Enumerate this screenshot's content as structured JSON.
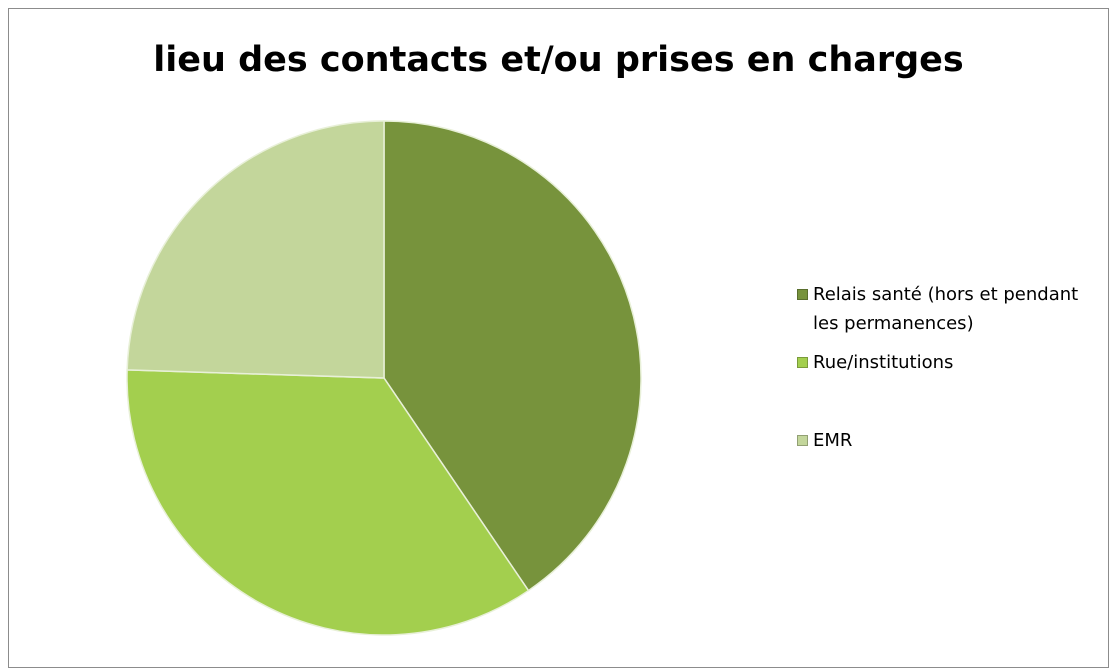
{
  "chart_data": {
    "type": "pie",
    "title": "lieu des contacts et/ou prises en charges",
    "categories": [
      "Relais santé (hors et pendant les permanences)",
      "Rue/institutions",
      "EMR"
    ],
    "values": [
      40.5,
      35,
      24.5
    ],
    "colors": [
      "#77933c",
      "#a3cf4e",
      "#c3d69b"
    ],
    "legend": "right"
  }
}
